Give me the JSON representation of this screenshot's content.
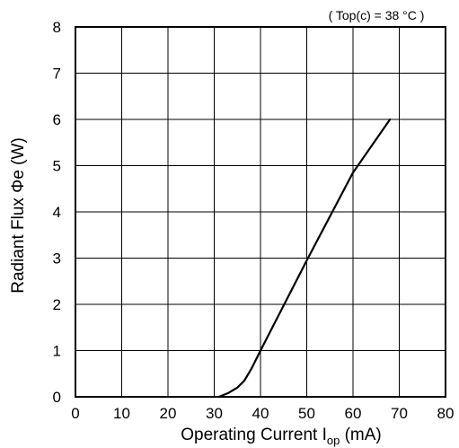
{
  "chart_data": {
    "type": "line",
    "condition": "( Top(c) = 38 °C )",
    "xlabel_main": "Operating Current  I",
    "xlabel_sub": "op",
    "xlabel_unit": " (mA)",
    "ylabel": "Radiant Flux  Φe  (W)",
    "xlim": [
      0,
      80
    ],
    "ylim": [
      0,
      8
    ],
    "x_ticks": [
      0,
      10,
      20,
      30,
      40,
      50,
      60,
      70,
      80
    ],
    "y_ticks": [
      0,
      1,
      2,
      3,
      4,
      5,
      6,
      7,
      8
    ],
    "grid": true,
    "series": [
      {
        "x": [
          31,
          33,
          35,
          36.5,
          38,
          40,
          50,
          60,
          68
        ],
        "y": [
          0,
          0.08,
          0.2,
          0.35,
          0.6,
          1.0,
          2.95,
          4.85,
          6.0
        ]
      }
    ]
  }
}
